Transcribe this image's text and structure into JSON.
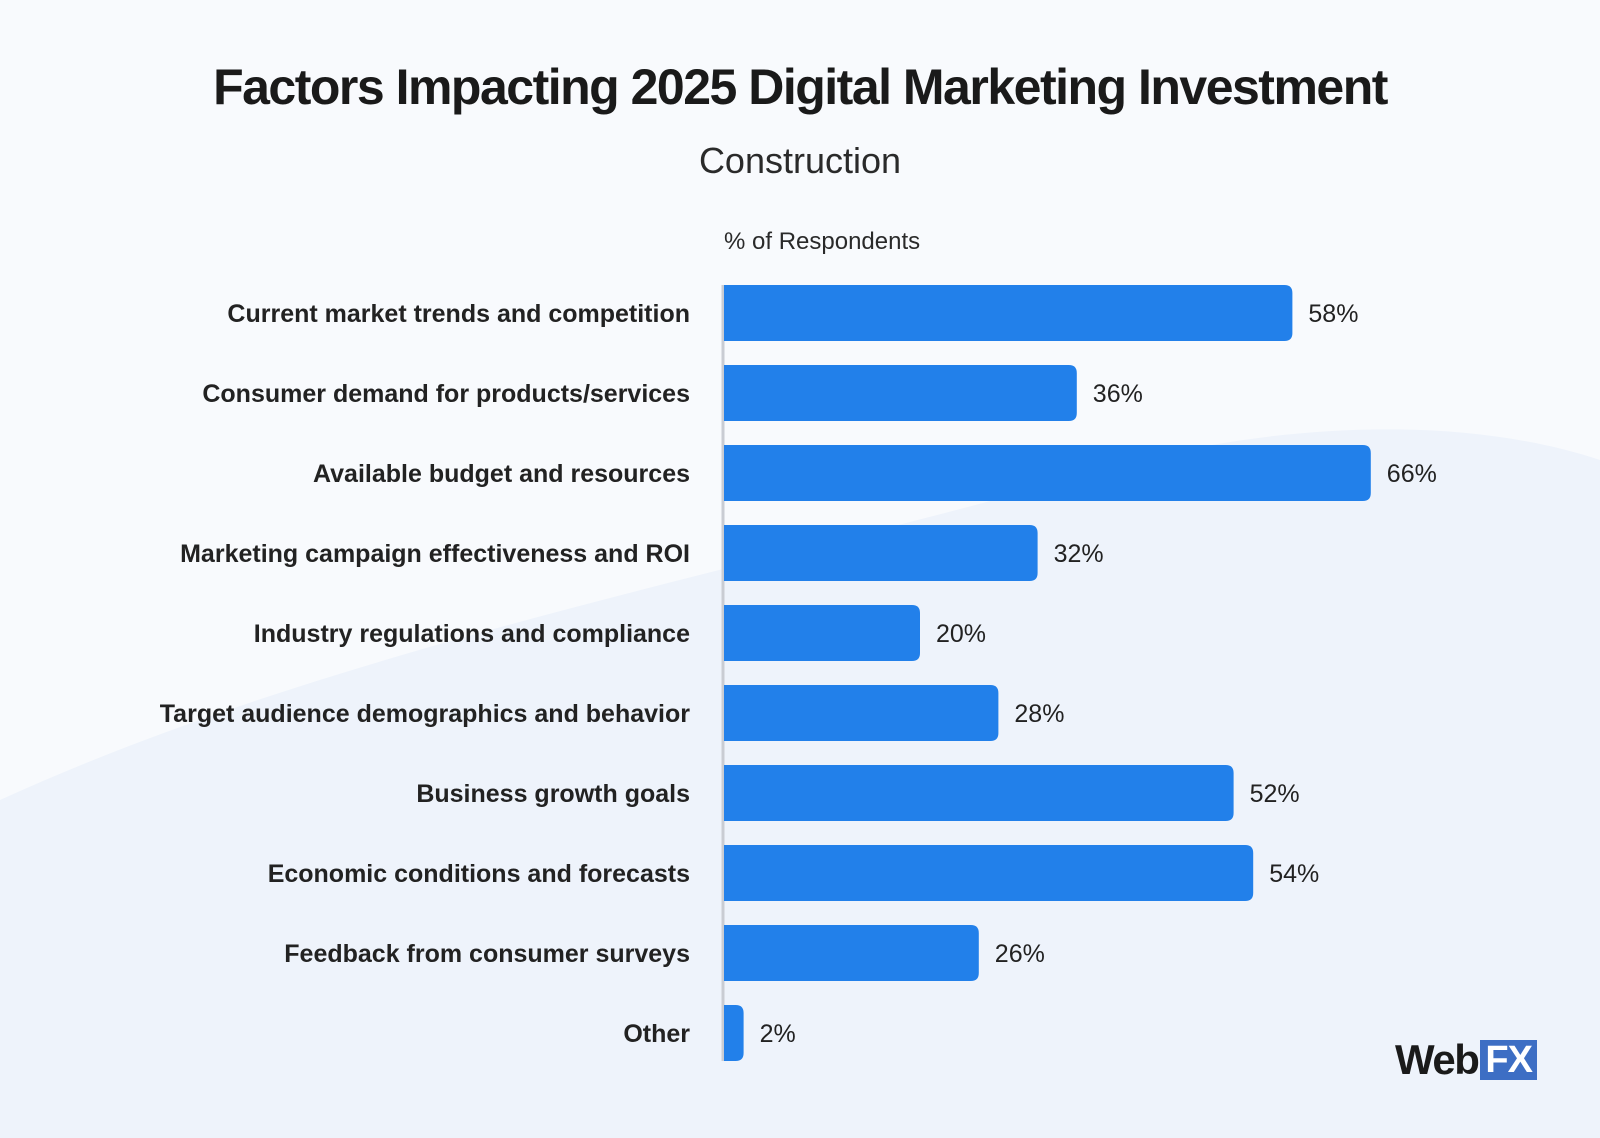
{
  "chart_data": {
    "type": "bar",
    "orientation": "horizontal",
    "title": "Factors Impacting 2025 Digital Marketing Investment",
    "subtitle": "Construction",
    "xlabel": "% of Respondents",
    "ylabel": "",
    "xlim": [
      0,
      100
    ],
    "grid": false,
    "bar_color": "#2280ea",
    "categories": [
      "Current market trends and competition",
      "Consumer demand for products/services",
      "Available budget and resources",
      "Marketing campaign effectiveness and ROI",
      "Industry regulations and compliance",
      "Target audience demographics and behavior",
      "Business growth goals",
      "Economic conditions and forecasts",
      "Feedback from consumer surveys",
      "Other"
    ],
    "values": [
      58,
      36,
      66,
      32,
      20,
      28,
      52,
      54,
      26,
      2
    ],
    "value_labels": [
      "58%",
      "36%",
      "66%",
      "32%",
      "20%",
      "28%",
      "52%",
      "54%",
      "26%",
      "2%"
    ]
  },
  "logo": {
    "text_web": "Web",
    "text_fx": "FX"
  }
}
